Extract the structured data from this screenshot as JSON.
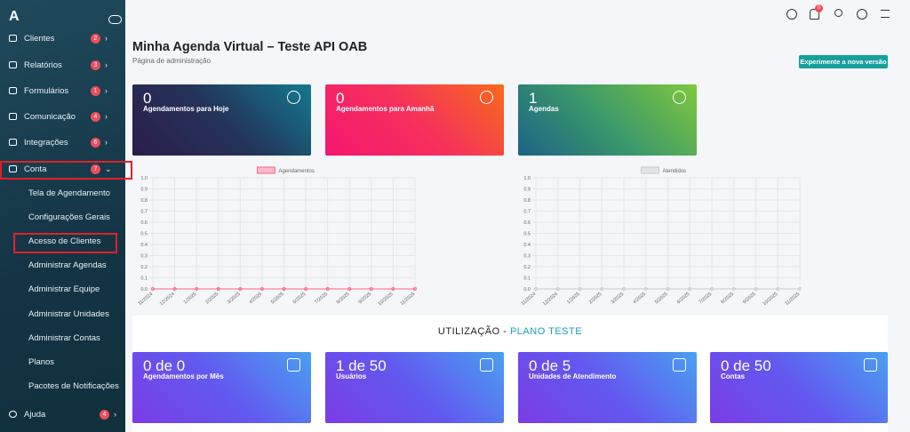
{
  "sidebar": {
    "items": [
      {
        "label": "Clientes",
        "badge": "2"
      },
      {
        "label": "Relatórios",
        "badge": "3"
      },
      {
        "label": "Formulários",
        "badge": "1"
      },
      {
        "label": "Comunicação",
        "badge": "4"
      },
      {
        "label": "Integrações",
        "badge": "6"
      },
      {
        "label": "Conta",
        "badge": "7"
      }
    ],
    "submenu": [
      "Tela de Agendamento",
      "Configurações Gerais",
      "Acesso de Clientes",
      "Administrar Agendas",
      "Administrar Equipe",
      "Administrar Unidades",
      "Administrar Contas",
      "Planos",
      "Pacotes de Notificações"
    ],
    "help": {
      "label": "Ajuda",
      "badge": "4"
    }
  },
  "topbar": {
    "notification_badge": "0"
  },
  "header": {
    "title": "Minha Agenda Virtual – Teste API OAB",
    "subtitle": "Página de administração",
    "button": "Experimente a nova versão"
  },
  "cards": [
    {
      "value": "0",
      "label": "Agendamentos para Hoje"
    },
    {
      "value": "0",
      "label": "Agendamentos para Amanhã"
    },
    {
      "value": "1",
      "label": "Agendas"
    }
  ],
  "chart_data": [
    {
      "type": "line",
      "categories": [
        "11/2024",
        "12/2024",
        "1/2025",
        "2/2025",
        "3/2025",
        "4/2025",
        "5/2025",
        "6/2025",
        "7/2025",
        "8/2025",
        "9/2025",
        "10/2025",
        "11/2025"
      ],
      "series": [
        {
          "name": "Agendamentos",
          "color": "#ff6384",
          "values": [
            0,
            0,
            0,
            0,
            0,
            0,
            0,
            0,
            0,
            0,
            0,
            0,
            0
          ]
        }
      ],
      "ylim": [
        0,
        1
      ],
      "yticks": [
        {
          "value": 0,
          "label": "0.0"
        },
        {
          "value": 0.1,
          "label": "0.1"
        },
        {
          "value": 0.2,
          "label": "0.2"
        },
        {
          "value": 0.3,
          "label": "0.3"
        },
        {
          "value": 0.4,
          "label": "0.4"
        },
        {
          "value": 0.5,
          "label": "0.5"
        },
        {
          "value": 0.6,
          "label": "0.6"
        },
        {
          "value": 0.7,
          "label": "0.7"
        },
        {
          "value": 0.8,
          "label": "0.8"
        },
        {
          "value": 0.9,
          "label": "0.9"
        },
        {
          "value": 1,
          "label": "1.0"
        }
      ],
      "grid": true
    },
    {
      "type": "line",
      "categories": [
        "11/2024",
        "12/2024",
        "1/2025",
        "2/2025",
        "3/2025",
        "4/2025",
        "5/2025",
        "6/2025",
        "7/2025",
        "8/2025",
        "9/2025",
        "10/2025",
        "11/2025"
      ],
      "series": [
        {
          "name": "Atendidos",
          "color": "#c9cbcf",
          "values": [
            0,
            0,
            0,
            0,
            0,
            0,
            0,
            0,
            0,
            0,
            0,
            0,
            0
          ]
        }
      ],
      "ylim": [
        0,
        1
      ],
      "yticks": [
        {
          "value": 0,
          "label": "0.0"
        },
        {
          "value": 0.1,
          "label": "0.1"
        },
        {
          "value": 0.2,
          "label": "0.2"
        },
        {
          "value": 0.3,
          "label": "0.3"
        },
        {
          "value": 0.4,
          "label": "0.4"
        },
        {
          "value": 0.5,
          "label": "0.5"
        },
        {
          "value": 0.6,
          "label": "0.6"
        },
        {
          "value": 0.7,
          "label": "0.7"
        },
        {
          "value": 0.8,
          "label": "0.8"
        },
        {
          "value": 0.9,
          "label": "0.9"
        },
        {
          "value": 1,
          "label": "1.0"
        }
      ],
      "grid": true
    }
  ],
  "usage": {
    "title": "UTILIZAÇÃO - ",
    "plan": "PLANO TESTE",
    "cards": [
      {
        "value": "0 de 0",
        "label": "Agendamentos por Mês"
      },
      {
        "value": "1 de 50",
        "label": "Usuários"
      },
      {
        "value": "0 de 5",
        "label": "Unidades de Atendimento"
      },
      {
        "value": "0 de 50",
        "label": "Contas"
      }
    ]
  }
}
